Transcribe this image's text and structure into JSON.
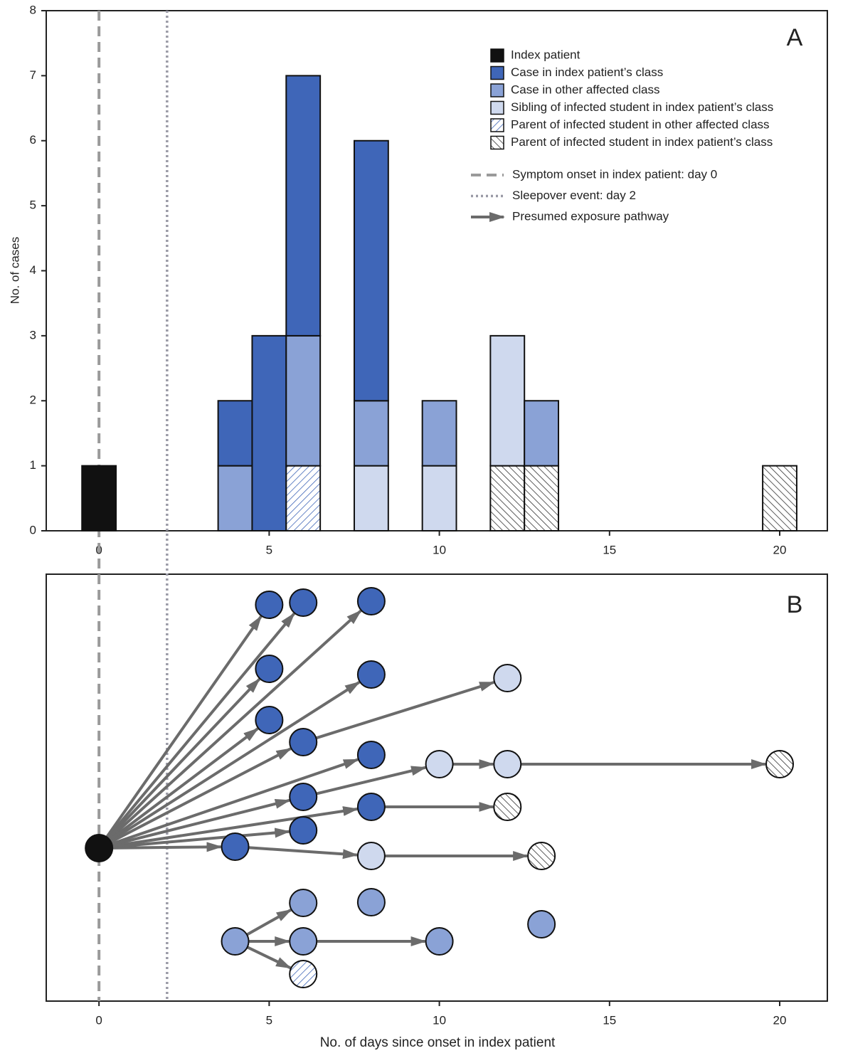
{
  "chart_data": [
    {
      "type": "bar",
      "panel": "A",
      "ylabel": "No. of cases",
      "x": [
        0,
        4,
        5,
        6,
        8,
        10,
        12,
        13,
        20
      ],
      "series": [
        {
          "name": "Index patient",
          "color": "#111111",
          "values": [
            1,
            0,
            0,
            0,
            0,
            0,
            0,
            0,
            0
          ]
        },
        {
          "name": "Case in index patient’s class",
          "color": "#3f66b8",
          "values": [
            0,
            1,
            3,
            4,
            4,
            0,
            0,
            0,
            0
          ]
        },
        {
          "name": "Case in other affected class",
          "color": "#8aa2d6",
          "values": [
            0,
            1,
            0,
            2,
            1,
            1,
            0,
            1,
            0
          ]
        },
        {
          "name": "Sibling of infected student in index patient’s class",
          "color": "#cfd9ee",
          "values": [
            0,
            0,
            0,
            0,
            1,
            1,
            2,
            0,
            0
          ]
        },
        {
          "name": "Parent of infected student in other affected class",
          "color": "#3f66b8",
          "hatch": "/",
          "values": [
            0,
            0,
            0,
            1,
            0,
            0,
            0,
            0,
            0
          ]
        },
        {
          "name": "Parent of infected student in index patient’s class",
          "color": "#333333",
          "hatch": "\\",
          "values": [
            0,
            0,
            0,
            0,
            0,
            0,
            1,
            1,
            1
          ]
        }
      ],
      "xlim": [
        -1.55,
        21.4
      ],
      "ylim": [
        0,
        8
      ],
      "xticks": [
        0,
        5,
        10,
        15,
        20
      ],
      "yticks": [
        0,
        1,
        2,
        3,
        4,
        5,
        6,
        7,
        8
      ],
      "legend": "upper right",
      "reference_lines": [
        {
          "name": "Symptom onset in index patient: day 0",
          "x": 0,
          "style": "dashed",
          "color": "#9a9a9a"
        },
        {
          "name": "Sleepover event: day 2",
          "x": 2,
          "style": "dotted",
          "color": "#9a9aa6"
        }
      ]
    },
    {
      "type": "network",
      "panel": "B",
      "xlabel": "No. of days since onset in index patient",
      "xlim": [
        -1.55,
        21.4
      ],
      "xticks": [
        0,
        5,
        10,
        15,
        20
      ],
      "edge_color": "#6b6b6b",
      "edge_legend": "Presumed exposure pathway",
      "nodes": [
        {
          "day": 0,
          "group": 0
        },
        {
          "day": 5,
          "group": 1
        },
        {
          "day": 6,
          "group": 1
        },
        {
          "day": 8,
          "group": 1
        },
        {
          "day": 5,
          "group": 1
        },
        {
          "day": 8,
          "group": 1
        },
        {
          "day": 12,
          "group": 3
        },
        {
          "day": 5,
          "group": 1
        },
        {
          "day": 6,
          "group": 1
        },
        {
          "day": 8,
          "group": 1
        },
        {
          "day": 10,
          "group": 3
        },
        {
          "day": 12,
          "group": 3
        },
        {
          "day": 20,
          "group": 5
        },
        {
          "day": 6,
          "group": 1
        },
        {
          "day": 8,
          "group": 1
        },
        {
          "day": 12,
          "group": 5
        },
        {
          "day": 6,
          "group": 1
        },
        {
          "day": 4,
          "group": 1
        },
        {
          "day": 8,
          "group": 3
        },
        {
          "day": 13,
          "group": 5
        },
        {
          "day": 6,
          "group": 2
        },
        {
          "day": 8,
          "group": 2
        },
        {
          "day": 13,
          "group": 2
        },
        {
          "day": 4,
          "group": 2
        },
        {
          "day": 6,
          "group": 2
        },
        {
          "day": 10,
          "group": 2
        },
        {
          "day": 6,
          "group": 4
        }
      ],
      "edges": [
        [
          0,
          1
        ],
        [
          0,
          2
        ],
        [
          0,
          3
        ],
        [
          0,
          4
        ],
        [
          0,
          5
        ],
        [
          0,
          7
        ],
        [
          0,
          8
        ],
        [
          0,
          9
        ],
        [
          0,
          13
        ],
        [
          0,
          14
        ],
        [
          0,
          16
        ],
        [
          0,
          17
        ],
        [
          8,
          6
        ],
        [
          13,
          10
        ],
        [
          10,
          11
        ],
        [
          11,
          12
        ],
        [
          14,
          15
        ],
        [
          17,
          18
        ],
        [
          18,
          19
        ],
        [
          23,
          20
        ],
        [
          23,
          24
        ],
        [
          23,
          26
        ],
        [
          24,
          25
        ]
      ]
    }
  ]
}
